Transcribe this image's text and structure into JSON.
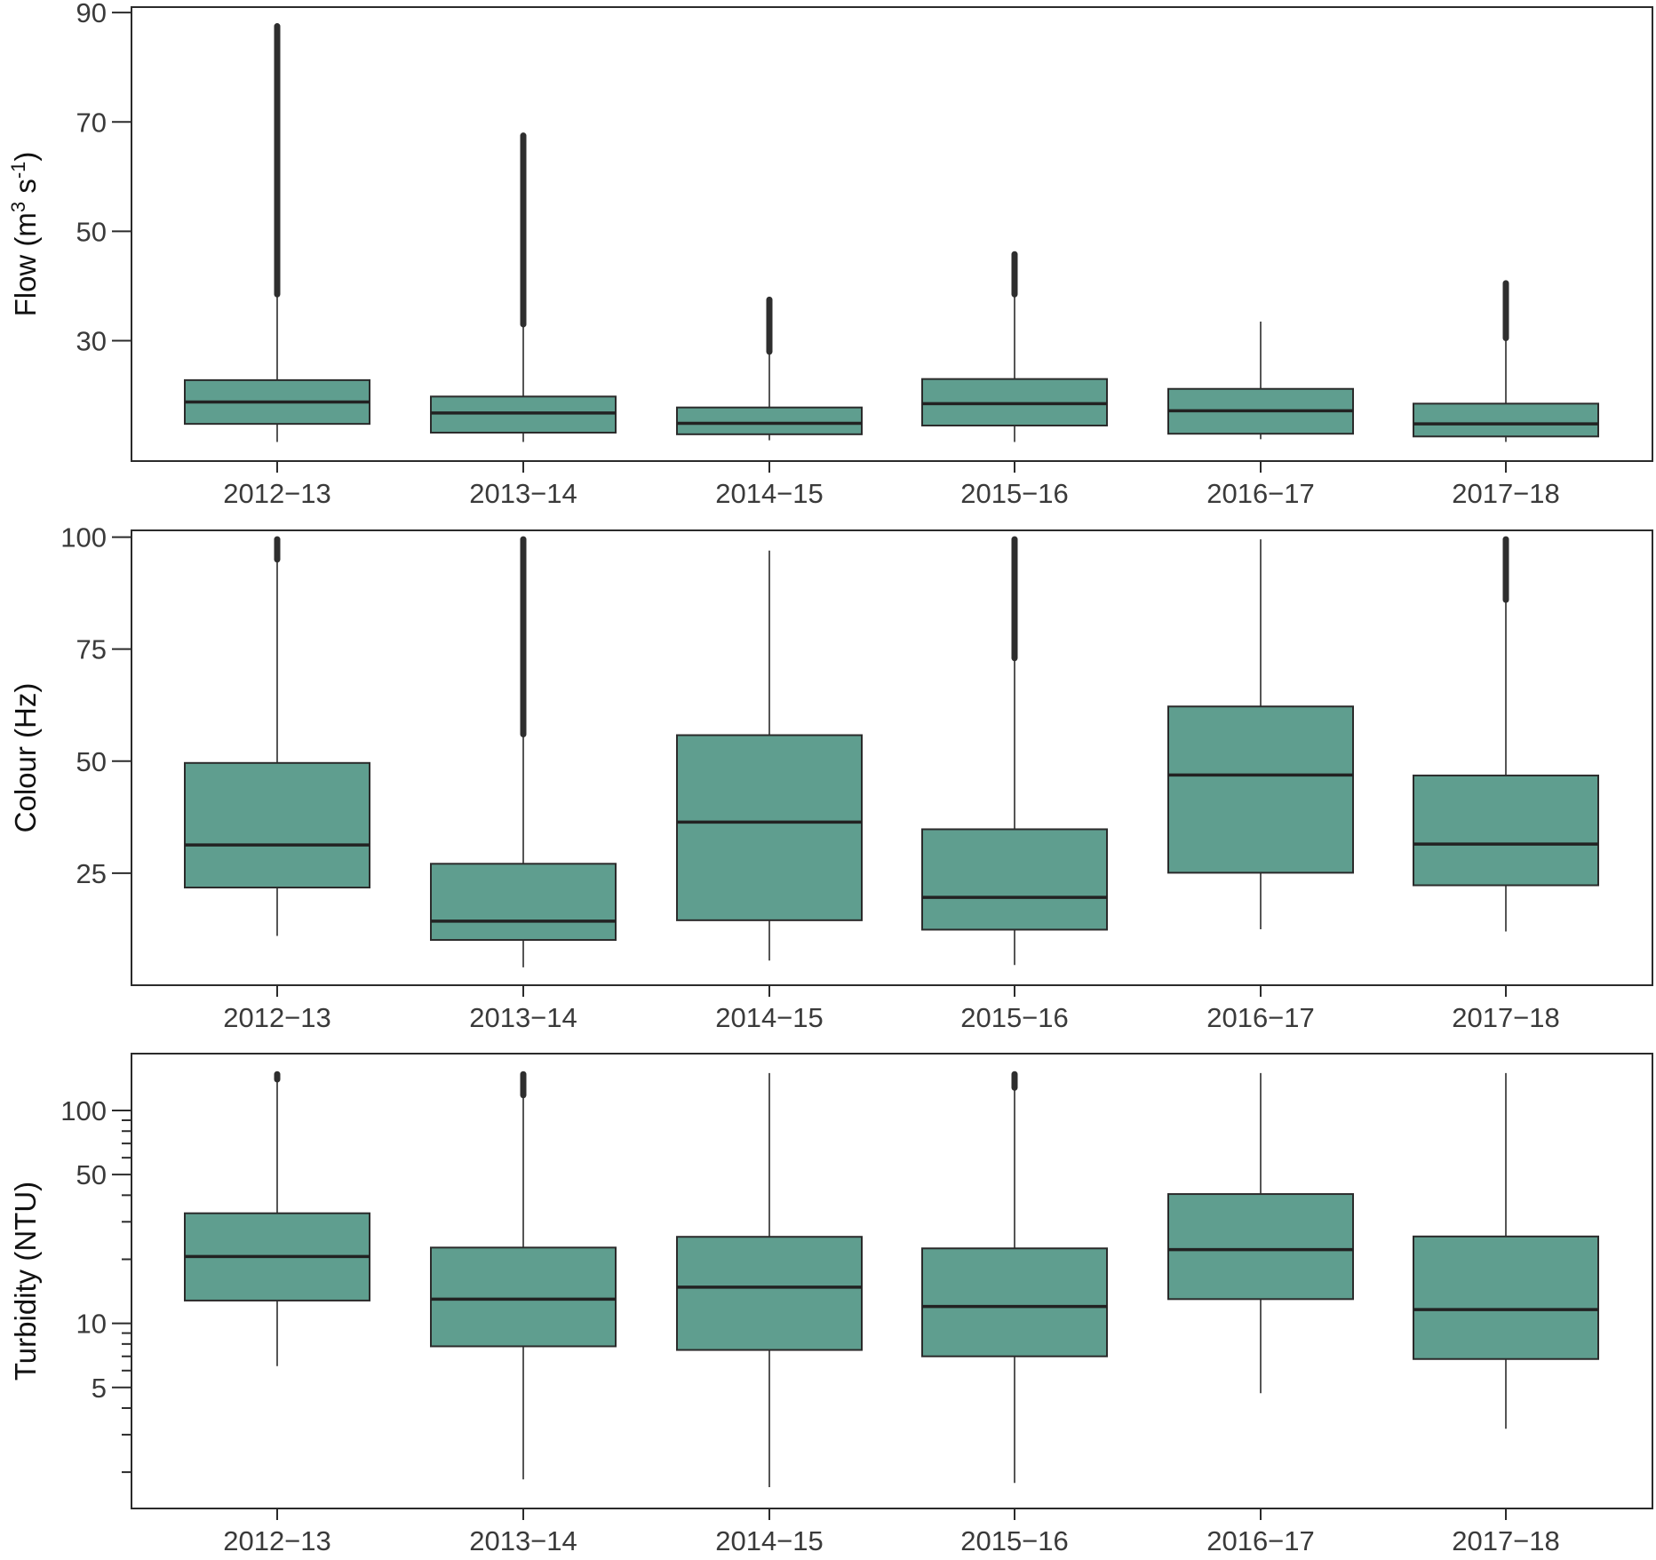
{
  "figure": {
    "background": "#ffffff",
    "box_fill": "#5f9e8f",
    "box_stroke": "#2b2b2b",
    "outlier_color": "#2e2e2e"
  },
  "chart_data": [
    {
      "type": "box",
      "ylabel_main": "Flow (m",
      "ylabel_sup1": "3",
      "ylabel_mid": " s",
      "ylabel_sup2": "-1",
      "ylabel_end": ")",
      "ylim": [
        8,
        91
      ],
      "yscale": "linear",
      "yticks": [
        30,
        50,
        70,
        90
      ],
      "categories": [
        "2012−13",
        "2013−14",
        "2014−15",
        "2015−16",
        "2016−17",
        "2017−18"
      ],
      "boxes": [
        {
          "whislo": 11.5,
          "q1": 14.8,
          "med": 18.8,
          "q3": 22.8,
          "whishi": 38.5,
          "outlier_range": [
            38.5,
            87.5
          ]
        },
        {
          "whislo": 11.5,
          "q1": 13.2,
          "med": 16.8,
          "q3": 19.8,
          "whishi": 33.0,
          "outlier_range": [
            33.0,
            67.5
          ]
        },
        {
          "whislo": 11.8,
          "q1": 12.9,
          "med": 14.9,
          "q3": 17.8,
          "whishi": 28.0,
          "outlier_range": [
            28.0,
            37.5
          ]
        },
        {
          "whislo": 11.5,
          "q1": 14.5,
          "med": 18.5,
          "q3": 23.0,
          "whishi": 38.5,
          "outlier_range": [
            38.5,
            45.8
          ]
        },
        {
          "whislo": 12.0,
          "q1": 13.0,
          "med": 17.2,
          "q3": 21.2,
          "whishi": 33.5,
          "outlier_range": null
        },
        {
          "whislo": 11.5,
          "q1": 12.5,
          "med": 14.8,
          "q3": 18.5,
          "whishi": 30.5,
          "outlier_range": [
            30.5,
            40.5
          ]
        }
      ]
    },
    {
      "type": "box",
      "ylabel": "Colour (Hz)",
      "ylim": [
        0,
        101.5
      ],
      "yscale": "linear",
      "yticks": [
        25,
        50,
        75,
        100
      ],
      "categories": [
        "2012−13",
        "2013−14",
        "2014−15",
        "2015−16",
        "2016−17",
        "2017−18"
      ],
      "boxes": [
        {
          "whislo": 11,
          "q1": 21.8,
          "med": 31.3,
          "q3": 49.6,
          "whishi": 95,
          "outlier_range": [
            95,
            99.5
          ]
        },
        {
          "whislo": 4,
          "q1": 10.1,
          "med": 14.3,
          "q3": 27.1,
          "whishi": 56,
          "outlier_range": [
            56,
            99.5
          ]
        },
        {
          "whislo": 5.5,
          "q1": 14.5,
          "med": 36.4,
          "q3": 55.8,
          "whishi": 97,
          "outlier_range": null
        },
        {
          "whislo": 4.5,
          "q1": 12.4,
          "med": 19.6,
          "q3": 34.8,
          "whishi": 73,
          "outlier_range": [
            73,
            99.5
          ]
        },
        {
          "whislo": 12.5,
          "q1": 25.1,
          "med": 46.9,
          "q3": 62.2,
          "whishi": 99.5,
          "outlier_range": null
        },
        {
          "whislo": 12,
          "q1": 22.3,
          "med": 31.5,
          "q3": 46.8,
          "whishi": 86,
          "outlier_range": [
            86,
            99.5
          ]
        }
      ]
    },
    {
      "type": "box",
      "ylabel": "Turbidity (NTU)",
      "ylim": [
        1.35,
        185
      ],
      "yscale": "log",
      "yticks": [
        5,
        10,
        50,
        100
      ],
      "minor_yticks": [
        2,
        3,
        4,
        6,
        7,
        8,
        9,
        20,
        30,
        40,
        60,
        70,
        80,
        90
      ],
      "categories": [
        "2012−13",
        "2013−14",
        "2014−15",
        "2015−16",
        "2016−17",
        "2017−18"
      ],
      "boxes": [
        {
          "whislo": 6.3,
          "q1": 12.8,
          "med": 20.6,
          "q3": 32.9,
          "whishi": 140,
          "outlier_range": [
            140,
            148
          ]
        },
        {
          "whislo": 1.85,
          "q1": 7.8,
          "med": 13.0,
          "q3": 22.7,
          "whishi": 118,
          "outlier_range": [
            118,
            148
          ]
        },
        {
          "whislo": 1.7,
          "q1": 7.5,
          "med": 14.8,
          "q3": 25.5,
          "whishi": 150,
          "outlier_range": null
        },
        {
          "whislo": 1.78,
          "q1": 7.0,
          "med": 12.0,
          "q3": 22.5,
          "whishi": 128,
          "outlier_range": [
            128,
            148
          ]
        },
        {
          "whislo": 4.7,
          "q1": 13.0,
          "med": 22.2,
          "q3": 40.5,
          "whishi": 150,
          "outlier_range": null
        },
        {
          "whislo": 3.2,
          "q1": 6.8,
          "med": 11.6,
          "q3": 25.6,
          "whishi": 150,
          "outlier_range": null
        }
      ]
    }
  ]
}
